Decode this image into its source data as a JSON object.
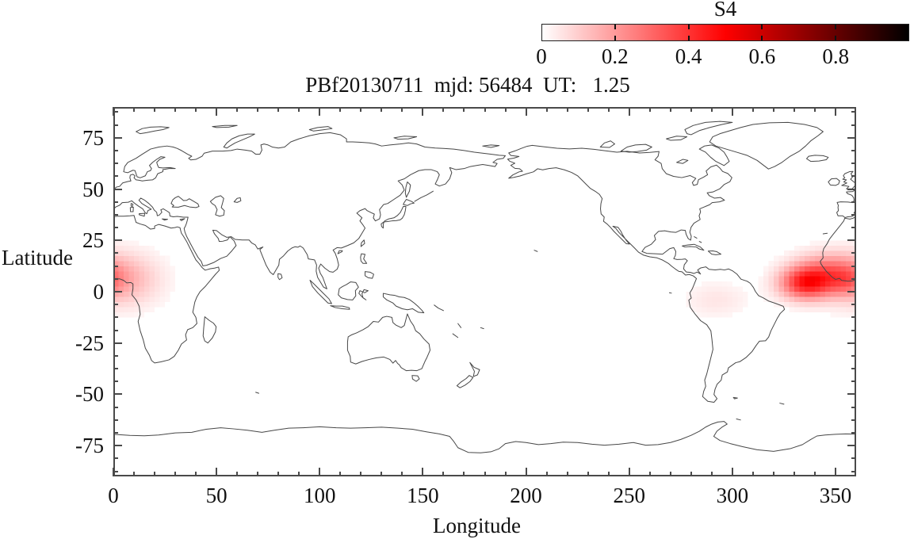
{
  "title": "PBf20130711  mjd: 56484  UT:   1.25",
  "colorbar": {
    "title": "S4",
    "tick_labels": [
      "0",
      "0.2",
      "0.4",
      "0.6",
      "0.8"
    ],
    "tick_values": [
      0,
      0.2,
      0.4,
      0.6,
      0.8
    ],
    "min": 0,
    "max": 1,
    "palette_stops": [
      "#ffffff",
      "#ff8080",
      "#ff0000",
      "#800000",
      "#000000"
    ]
  },
  "axes": {
    "x_label": "Longitude",
    "y_label": "Latitude",
    "x_tick_labels": [
      "0",
      "50",
      "100",
      "150",
      "200",
      "250",
      "300",
      "350"
    ],
    "x_ticks": [
      0,
      50,
      100,
      150,
      200,
      250,
      300,
      350
    ],
    "x_minor_step": 10,
    "y_tick_labels": [
      "75",
      "50",
      "25",
      "0",
      "-25",
      "-50",
      "-75"
    ],
    "y_ticks": [
      75,
      50,
      25,
      0,
      -25,
      -50,
      -75
    ],
    "y_minor_step": 6.25,
    "x_range": [
      0,
      360
    ],
    "y_range": [
      -90,
      90
    ]
  },
  "chart_data": {
    "type": "heatmap",
    "title": "PBf20130711  mjd: 56484  UT:   1.25",
    "xlabel": "Longitude",
    "ylabel": "Latitude",
    "xlim": [
      0,
      360
    ],
    "ylim": [
      -90,
      90
    ],
    "zlim": [
      0,
      1
    ],
    "colorbar_label": "S4",
    "grid": false,
    "cell_size_deg": 2.5,
    "basemap": "world coastlines, equirectangular projection, longitude 0-360E",
    "palette": "white to red (S4=0.5) to black (S4=1.0)",
    "s4_blobs": [
      {
        "region": "equatorial West Africa (left edge)",
        "center_lon": 3,
        "center_lat": 6,
        "sigma_lon": 13,
        "sigma_lat": 9,
        "peak_s4": 0.17
      },
      {
        "region": "eastern Atlantic off West Africa (right edge core)",
        "center_lon": 336,
        "center_lat": 4,
        "sigma_lon": 9,
        "sigma_lat": 5.5,
        "peak_s4": 0.42
      },
      {
        "region": "northeast lobe of right-edge enhancement",
        "center_lon": 345,
        "center_lat": 11,
        "sigma_lon": 11,
        "sigma_lat": 6,
        "peak_s4": 0.18
      },
      {
        "region": "far-eastern Atlantic near prime meridian",
        "center_lon": 355,
        "center_lat": 5,
        "sigma_lon": 6,
        "sigma_lat": 5,
        "peak_s4": 0.12
      },
      {
        "region": "northern South America (very faint)",
        "center_lon": 292,
        "center_lat": -4,
        "sigma_lon": 11,
        "sigma_lat": 6,
        "peak_s4": 0.05
      }
    ]
  }
}
